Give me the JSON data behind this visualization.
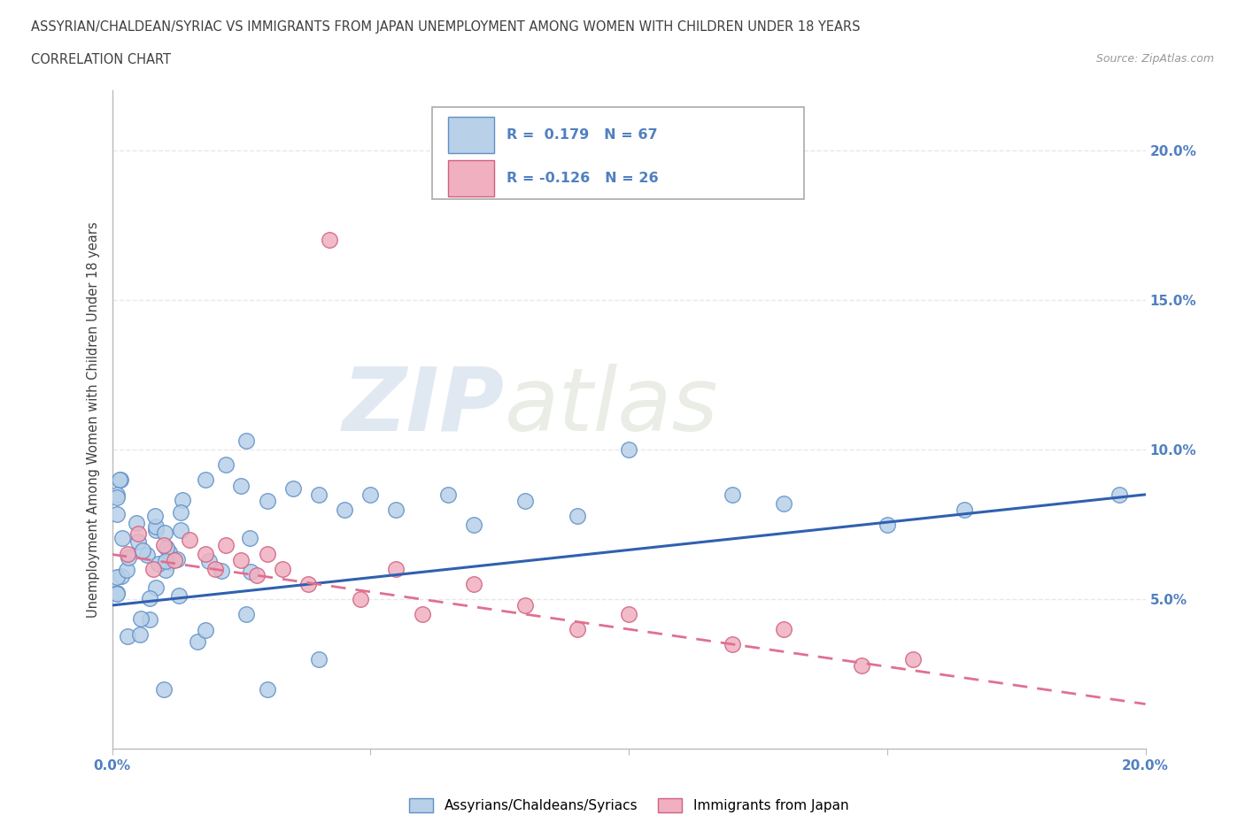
{
  "title_line1": "ASSYRIAN/CHALDEAN/SYRIAC VS IMMIGRANTS FROM JAPAN UNEMPLOYMENT AMONG WOMEN WITH CHILDREN UNDER 18 YEARS",
  "title_line2": "CORRELATION CHART",
  "source_text": "Source: ZipAtlas.com",
  "ylabel": "Unemployment Among Women with Children Under 18 years",
  "xlim": [
    0.0,
    0.2
  ],
  "ylim": [
    0.0,
    0.22
  ],
  "xticks": [
    0.0,
    0.05,
    0.1,
    0.15,
    0.2
  ],
  "xticklabels_ends": [
    "0.0%",
    "20.0%"
  ],
  "ytick_right_vals": [
    0.05,
    0.1,
    0.15,
    0.2
  ],
  "ytick_right_labels": [
    "5.0%",
    "10.0%",
    "15.0%",
    "20.0%"
  ],
  "watermark_zip": "ZIP",
  "watermark_atlas": "atlas",
  "legend_text1": "R =  0.179   N = 67",
  "legend_text2": "R = -0.126   N = 26",
  "series1_color_face": "#b8d0e8",
  "series1_color_edge": "#6090c8",
  "series2_color_face": "#f0b0c0",
  "series2_color_edge": "#d06080",
  "line1_color": "#3060b0",
  "line2_color": "#e07090",
  "line1_y0": 0.048,
  "line1_y1": 0.085,
  "line2_y0": 0.065,
  "line2_y1": 0.015,
  "series1_label": "Assyrians/Chaldeans/Syriacs",
  "series2_label": "Immigrants from Japan",
  "background_color": "#ffffff",
  "grid_color": "#e8e8e8",
  "title_color": "#404040",
  "tick_color": "#5080c0"
}
